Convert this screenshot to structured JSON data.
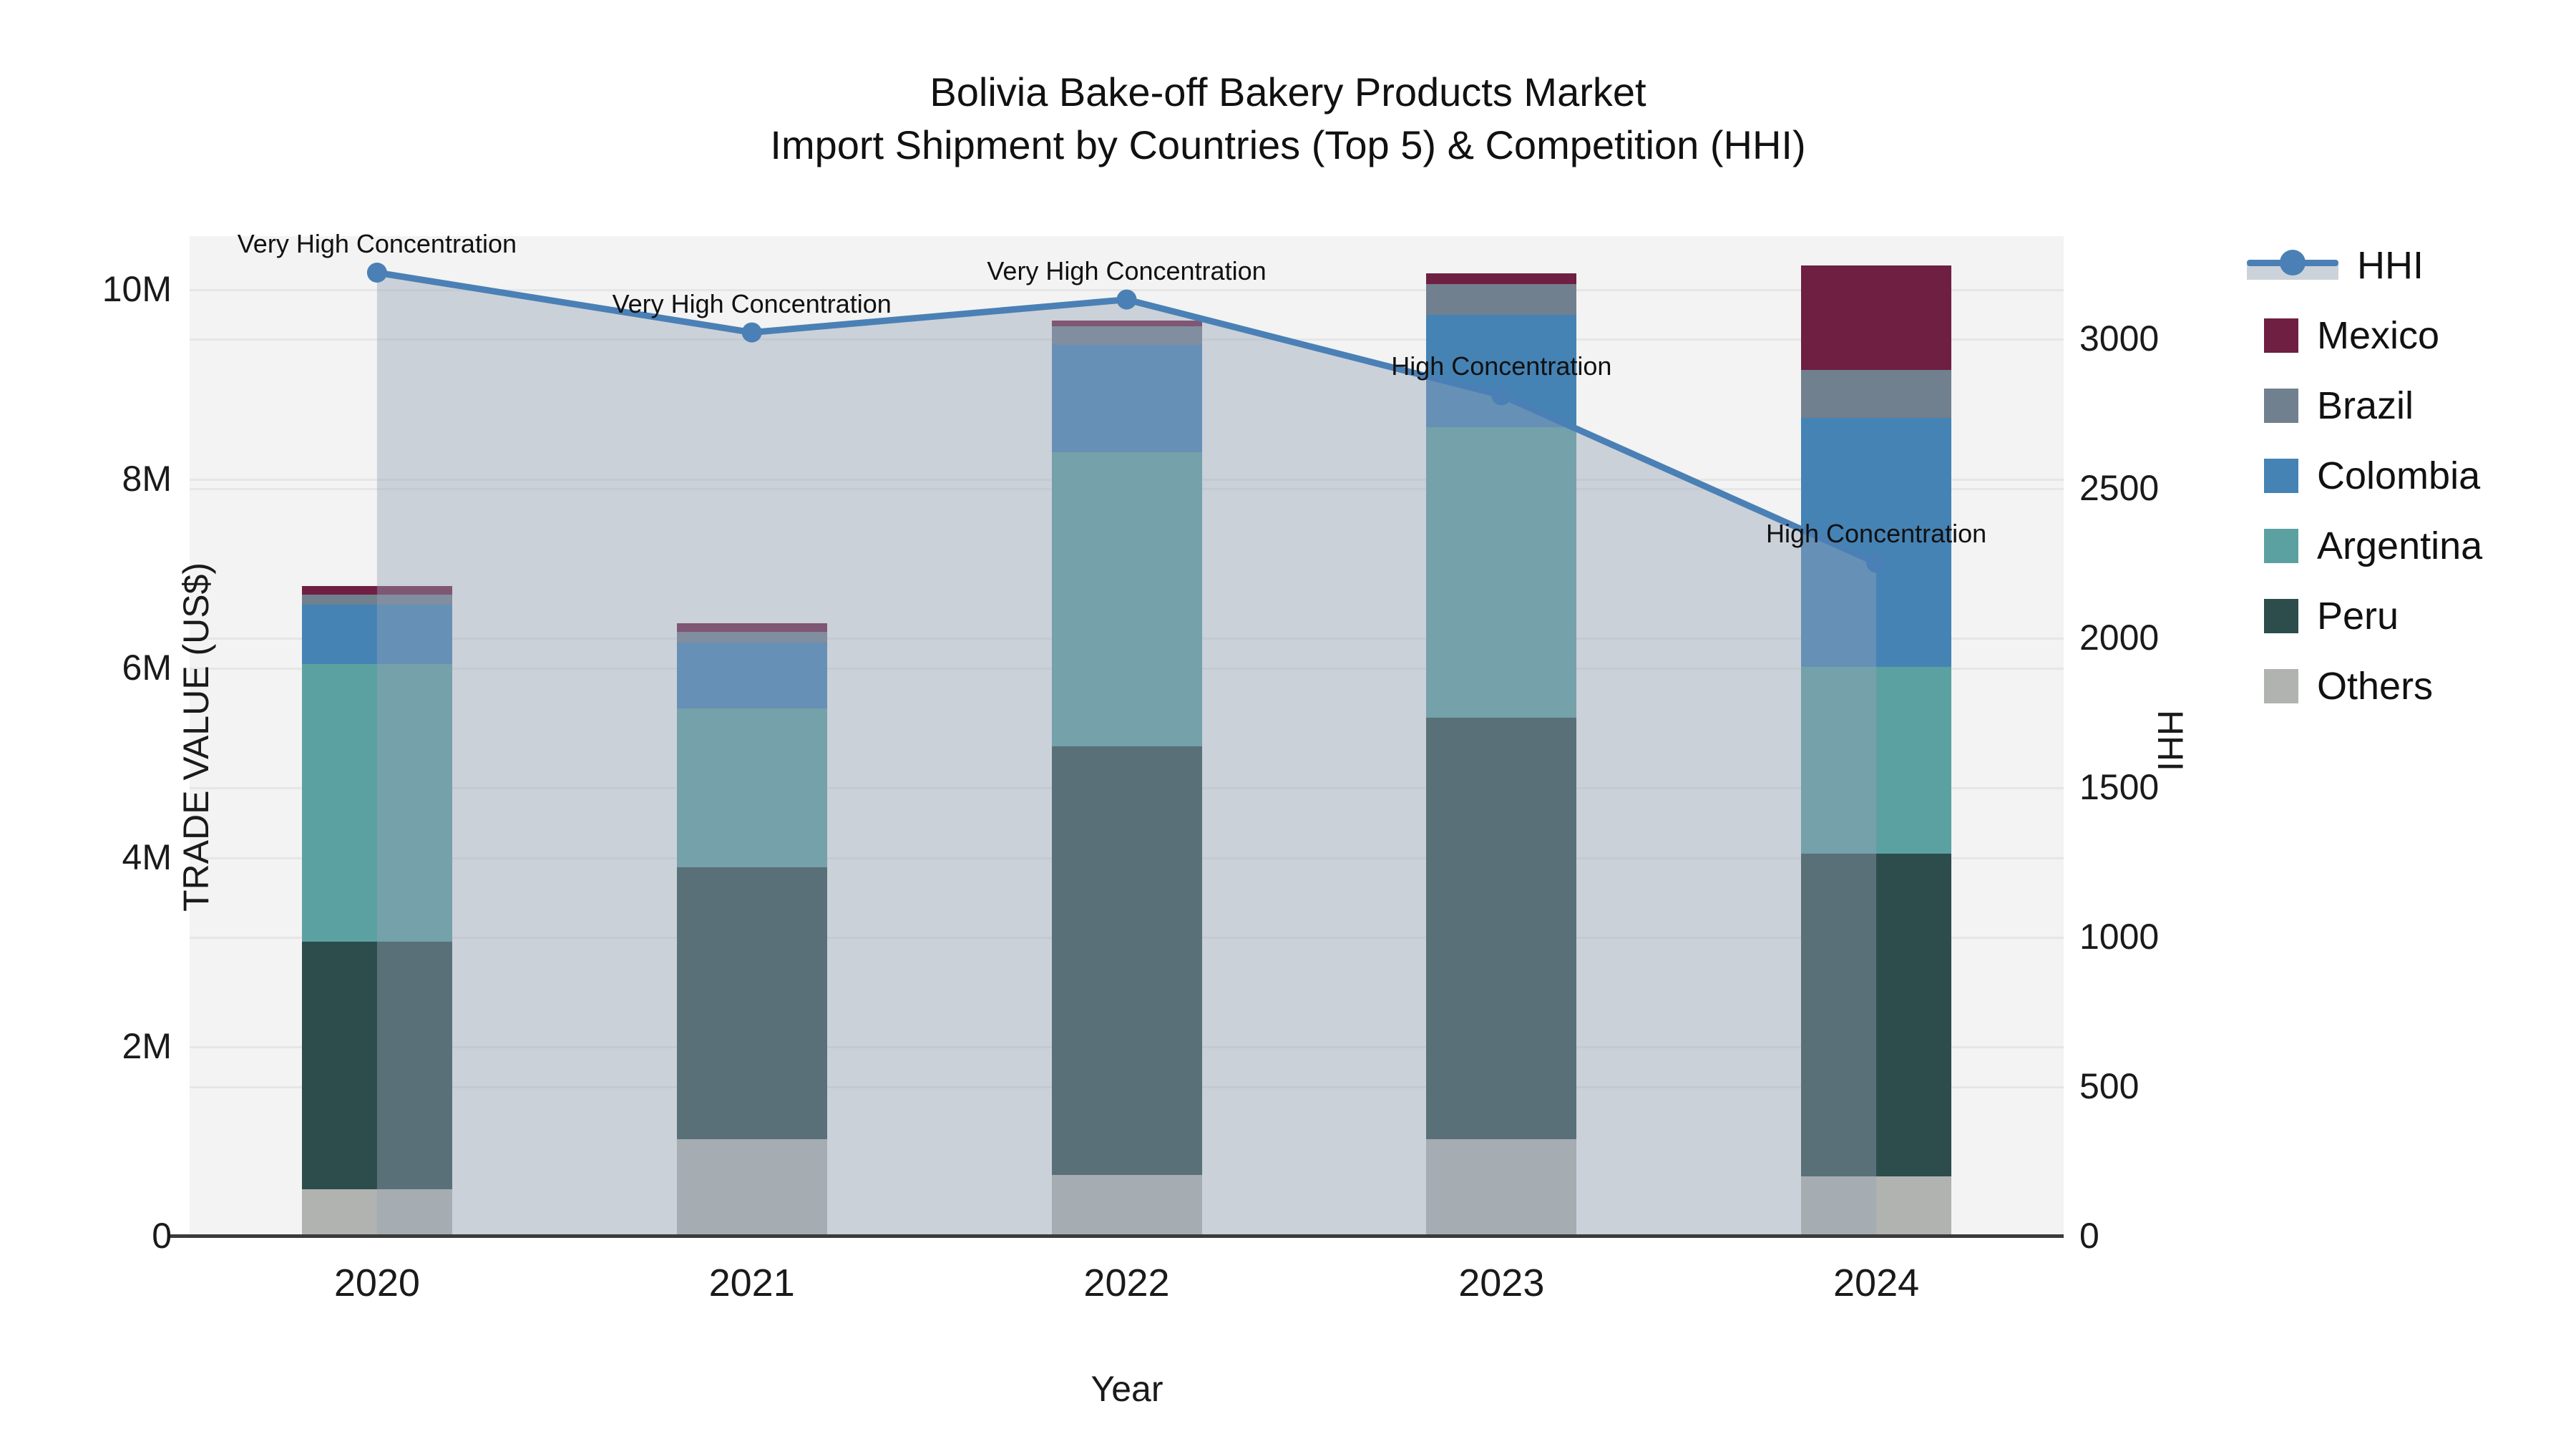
{
  "title": {
    "line1": "Bolivia Bake-off Bakery Products Market",
    "line2": "Import Shipment by Countries (Top 5) & Competition (HHI)"
  },
  "axes": {
    "x": {
      "title": "Year",
      "categories": [
        "2020",
        "2021",
        "2022",
        "2023",
        "2024"
      ]
    },
    "y_left": {
      "title": "TRADE VALUE (US$)",
      "ticks": [
        {
          "label": "0",
          "value": 0
        },
        {
          "label": "2M",
          "value": 2000000
        },
        {
          "label": "4M",
          "value": 4000000
        },
        {
          "label": "6M",
          "value": 6000000
        },
        {
          "label": "8M",
          "value": 8000000
        },
        {
          "label": "10M",
          "value": 10000000
        }
      ]
    },
    "y_right": {
      "title": "HHI",
      "ticks": [
        {
          "label": "0",
          "value": 0
        },
        {
          "label": "500",
          "value": 500
        },
        {
          "label": "1000",
          "value": 1000
        },
        {
          "label": "1500",
          "value": 1500
        },
        {
          "label": "2000",
          "value": 2000
        },
        {
          "label": "2500",
          "value": 2500
        },
        {
          "label": "3000",
          "value": 3000
        }
      ]
    }
  },
  "colors": {
    "plot_background": "#f2f3f2",
    "gridline": "rgba(0,0,0,0.05)",
    "axis_line": "#3b3b3b",
    "hhi_line": "#4a80b5",
    "hhi_fill": "rgba(151,161,183,0.42)",
    "mexico": "#6e1f42",
    "brazil": "#71808e",
    "colombia": "#4583b5",
    "argentina": "#5ca1a1",
    "peru": "#2d4c4c",
    "others": "#b0b3af"
  },
  "legend": {
    "items": [
      {
        "label": "HHI",
        "type": "line",
        "color": "#4a80b5"
      },
      {
        "label": "Mexico",
        "type": "swatch",
        "color": "#6e1f42"
      },
      {
        "label": "Brazil",
        "type": "swatch",
        "color": "#71808e"
      },
      {
        "label": "Colombia",
        "type": "swatch",
        "color": "#4583b5"
      },
      {
        "label": "Argentina",
        "type": "swatch",
        "color": "#5ca1a1"
      },
      {
        "label": "Peru",
        "type": "swatch",
        "color": "#2d4c4c"
      },
      {
        "label": "Others",
        "type": "swatch",
        "color": "#b0b3af"
      }
    ]
  },
  "chart_data": {
    "type": "bar+line",
    "title": "Bolivia Bake-off Bakery Products Market — Import Shipment by Countries (Top 5) & Competition (HHI)",
    "xlabel": "Year",
    "ylabel": "TRADE VALUE (US$)",
    "y2label": "HHI",
    "categories": [
      "2020",
      "2021",
      "2022",
      "2023",
      "2024"
    ],
    "stack_order_bottom_to_top": [
      "Others",
      "Peru",
      "Argentina",
      "Colombia",
      "Brazil",
      "Mexico"
    ],
    "series": [
      {
        "name": "Others",
        "color": "#b0b3af",
        "values": [
          490000,
          1020000,
          640000,
          1020000,
          630000
        ]
      },
      {
        "name": "Peru",
        "color": "#2d4c4c",
        "values": [
          2620000,
          2870000,
          4530000,
          4450000,
          3410000
        ]
      },
      {
        "name": "Argentina",
        "color": "#5ca1a1",
        "values": [
          2930000,
          1680000,
          3110000,
          3070000,
          1970000
        ]
      },
      {
        "name": "Colombia",
        "color": "#4583b5",
        "values": [
          630000,
          700000,
          1130000,
          1190000,
          2630000
        ]
      },
      {
        "name": "Brazil",
        "color": "#71808e",
        "values": [
          100000,
          110000,
          200000,
          320000,
          510000
        ]
      },
      {
        "name": "Mexico",
        "color": "#6e1f42",
        "values": [
          90000,
          90000,
          60000,
          120000,
          1100000
        ]
      }
    ],
    "totals": [
      6860000,
      6470000,
      9670000,
      10170000,
      10250000
    ],
    "hhi_series": {
      "name": "HHI",
      "line_color": "#4a80b5",
      "fill_color": "rgba(151,161,183,0.42)",
      "values": [
        3220,
        3020,
        3130,
        2810,
        2250
      ]
    },
    "annotations": [
      {
        "category": "2020",
        "text": "Very High Concentration"
      },
      {
        "category": "2021",
        "text": "Very High Concentration"
      },
      {
        "category": "2022",
        "text": "Very High Concentration"
      },
      {
        "category": "2023",
        "text": "High Concentration"
      },
      {
        "category": "2024",
        "text": "High Concentration"
      }
    ],
    "ylim": [
      0,
      10560000
    ],
    "y2lim": [
      0,
      3342
    ],
    "grid": true,
    "legend_position": "right"
  }
}
